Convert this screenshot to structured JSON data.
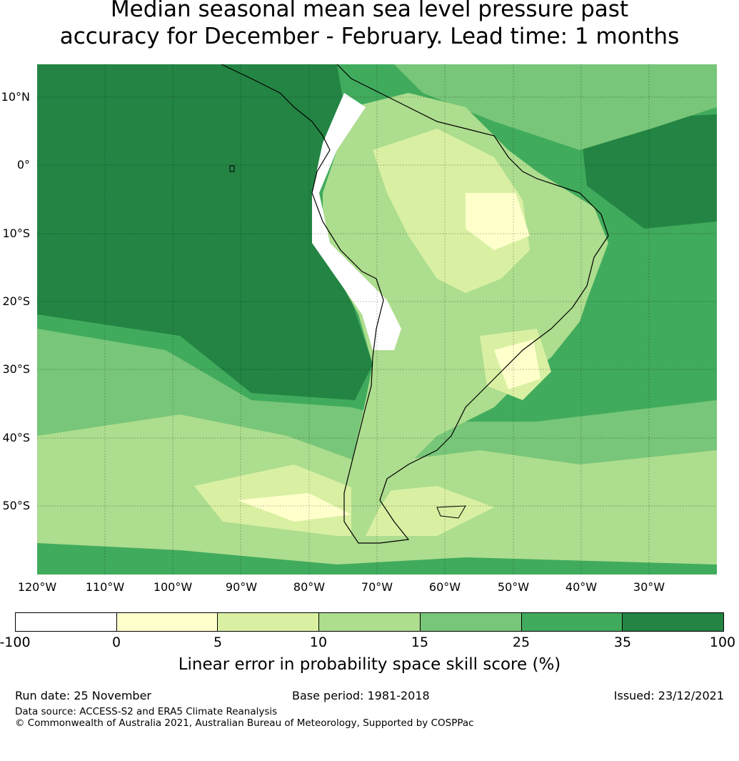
{
  "title_line1": "Median seasonal mean sea level pressure past",
  "title_line2": "accuracy for December - February. Lead time: 1 months",
  "lat_labels": [
    "10°N",
    "0°",
    "10°S",
    "20°S",
    "30°S",
    "40°S",
    "50°S"
  ],
  "lon_labels": [
    "120°W",
    "110°W",
    "100°W",
    "90°W",
    "80°W",
    "70°W",
    "60°W",
    "50°W",
    "40°W",
    "30°W"
  ],
  "colorbar": {
    "ticks": [
      "-100",
      "0",
      "5",
      "10",
      "15",
      "25",
      "35",
      "100"
    ],
    "colors": [
      "#ffffff",
      "#ffffcc",
      "#d9f0a3",
      "#addd8e",
      "#78c679",
      "#41ab5d",
      "#238443"
    ],
    "label": "Linear error in probability space skill score (%)"
  },
  "footer": {
    "run_date": "Run date: 25 November",
    "base_period": "Base period: 1981-2018",
    "issued": "Issued: 23/12/2021",
    "data_source": "Data source: ACCESS-S2 and ERA5 Climate Reanalysis",
    "copyright": "© Commonwealth of Australia 2021, Australian Bureau of Meteorology, Supported by COSPPac"
  }
}
